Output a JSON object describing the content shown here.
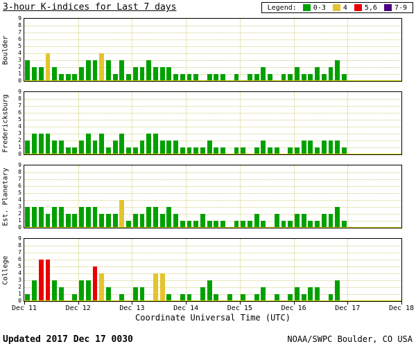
{
  "title": "3-hour K-indices for Last 7 days",
  "legend": {
    "label": "Legend:",
    "items": [
      {
        "key": "k-0-3",
        "label": "0-3",
        "color": "#00A000"
      },
      {
        "key": "k-4",
        "label": "4",
        "color": "#E5C32D"
      },
      {
        "key": "k-5-6",
        "label": "5,6",
        "color": "#E80000"
      },
      {
        "key": "k-7-9",
        "label": "7-9",
        "color": "#4B0082"
      }
    ]
  },
  "xlabel": "Coordinate Universal Time (UTC)",
  "x_ticks": [
    "Dec 11",
    "Dec 12",
    "Dec 13",
    "Dec 14",
    "Dec 15",
    "Dec 16",
    "Dec 17",
    "Dec 18"
  ],
  "y_ticks": [
    0,
    1,
    2,
    3,
    4,
    5,
    6,
    7,
    8,
    9
  ],
  "footer": {
    "updated_label": "Updated",
    "updated_value": "2017 Dec 17 0030",
    "source": "NOAA/SWPC Boulder, CO USA"
  },
  "chart_data": {
    "type": "bar",
    "title": "3-hour K-indices for Last 7 days",
    "ylim": [
      0,
      9
    ],
    "days": 7,
    "bars_per_day": 8,
    "grid": true,
    "legend_position": "top-right",
    "colors": {
      "green": "#00A000",
      "yellow": "#E5C32D",
      "red": "#E80000",
      "purple": "#4B0082"
    },
    "color_rules": {
      "0-3": "green",
      "4": "yellow",
      "5-6": "red",
      "7-9": "purple"
    },
    "x_start": "Dec 11",
    "x_end": "Dec 18",
    "panels": [
      {
        "station": "Boulder",
        "values": [
          3,
          2,
          2,
          4,
          2,
          1,
          1,
          1,
          2,
          3,
          3,
          4,
          3,
          1,
          3,
          1,
          2,
          2,
          3,
          2,
          2,
          2,
          1,
          1,
          1,
          1,
          0,
          1,
          1,
          1,
          0,
          1,
          0,
          1,
          1,
          2,
          1,
          0,
          1,
          1,
          2,
          1,
          1,
          2,
          1,
          2,
          3,
          1
        ]
      },
      {
        "station": "Fredericksburg",
        "values": [
          2,
          3,
          3,
          3,
          2,
          2,
          1,
          1,
          2,
          3,
          2,
          3,
          1,
          2,
          3,
          1,
          1,
          2,
          3,
          3,
          2,
          2,
          2,
          1,
          1,
          1,
          1,
          2,
          1,
          1,
          0,
          1,
          1,
          0,
          1,
          2,
          1,
          1,
          0,
          1,
          1,
          2,
          2,
          1,
          2,
          2,
          2,
          1
        ]
      },
      {
        "station": "Est. Planetary",
        "values": [
          3,
          3,
          3,
          2,
          3,
          3,
          2,
          2,
          3,
          3,
          3,
          2,
          2,
          2,
          4,
          1,
          2,
          2,
          3,
          3,
          2,
          3,
          2,
          1,
          1,
          1,
          2,
          1,
          1,
          1,
          0,
          1,
          1,
          1,
          2,
          1,
          0,
          2,
          1,
          1,
          2,
          2,
          1,
          1,
          2,
          2,
          3,
          1
        ]
      },
      {
        "station": "College",
        "values": [
          1,
          3,
          6,
          6,
          3,
          2,
          0,
          1,
          3,
          3,
          5,
          4,
          2,
          0,
          1,
          0,
          2,
          2,
          0,
          4,
          4,
          1,
          0,
          1,
          1,
          0,
          2,
          3,
          1,
          0,
          1,
          0,
          1,
          0,
          1,
          2,
          0,
          1,
          0,
          1,
          2,
          1,
          2,
          2,
          0,
          1,
          3,
          0
        ]
      }
    ]
  }
}
